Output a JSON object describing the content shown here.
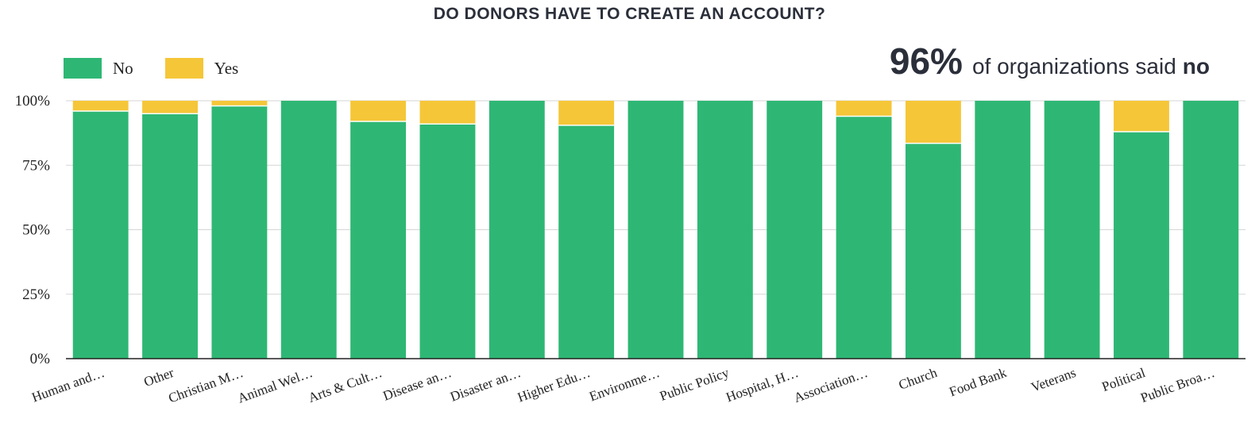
{
  "chart_data": {
    "type": "bar",
    "stacked": true,
    "title": "DO DONORS HAVE TO CREATE AN ACCOUNT?",
    "categories": [
      "Human and…",
      "Other",
      "Christian M…",
      "Animal Wel…",
      "Arts & Cult…",
      "Disease an…",
      "Disaster an…",
      "Higher Edu…",
      "Environme…",
      "Public Policy",
      "Hospital, H…",
      "Association…",
      "Church",
      "Food Bank",
      "Veterans",
      "Political",
      "Public Broa…"
    ],
    "series": [
      {
        "name": "No",
        "color": "#2eb774",
        "values": [
          96,
          95,
          98,
          100,
          92,
          91,
          100,
          90.5,
          100,
          100,
          100,
          94,
          83.5,
          100,
          100,
          88,
          100
        ]
      },
      {
        "name": "Yes",
        "color": "#f5c638",
        "values": [
          4,
          5,
          2,
          0,
          8,
          9,
          0,
          9.5,
          0,
          0,
          0,
          6,
          16.5,
          0,
          0,
          12,
          0
        ]
      }
    ],
    "ylim": [
      0,
      100
    ],
    "yticks": [
      "0%",
      "25%",
      "50%",
      "75%",
      "100%"
    ],
    "ytick_values": [
      0,
      25,
      50,
      75,
      100
    ],
    "grid": true,
    "legend_position": "top-left"
  },
  "callout": {
    "percent": "96%",
    "text": "of organizations said",
    "emphasis": "no"
  }
}
